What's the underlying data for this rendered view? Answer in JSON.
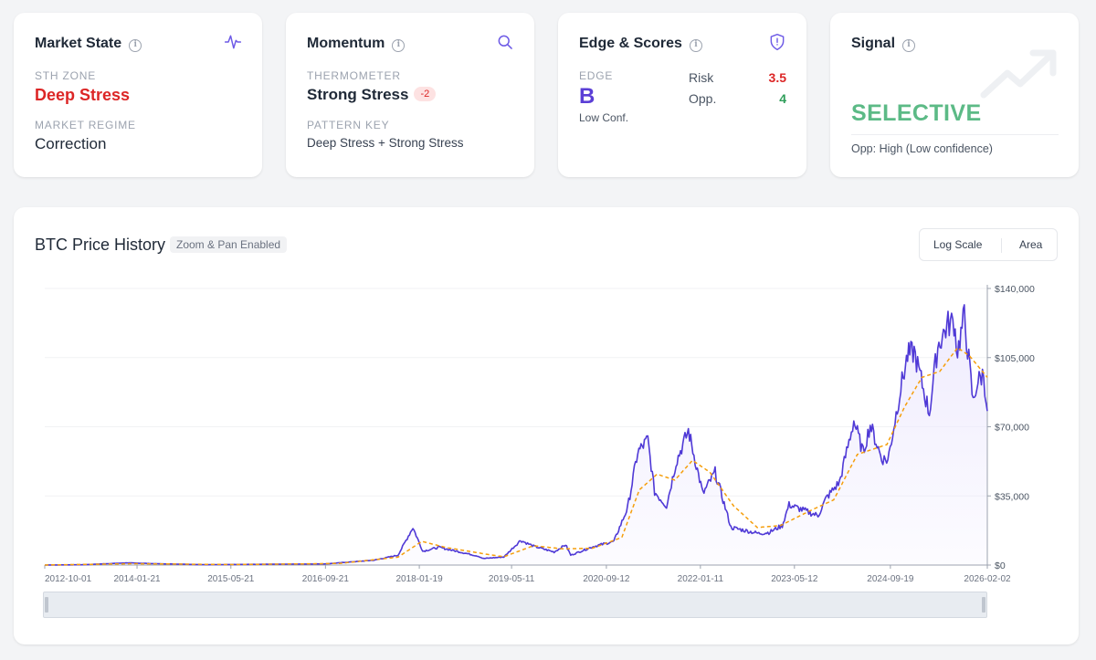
{
  "cards": {
    "market_state": {
      "title": "Market State",
      "header_icon": "activity-icon",
      "sth_label": "STH ZONE",
      "sth_value": "Deep Stress",
      "regime_label": "MARKET REGIME",
      "regime_value": "Correction"
    },
    "momentum": {
      "title": "Momentum",
      "header_icon": "search-icon",
      "thermo_label": "THERMOMETER",
      "thermo_value": "Strong Stress",
      "thermo_badge": "-2",
      "pattern_label": "PATTERN KEY",
      "pattern_value": "Deep Stress + Strong Stress"
    },
    "edge": {
      "title": "Edge & Scores",
      "header_icon": "shield-icon",
      "edge_label": "EDGE",
      "edge_value": "B",
      "edge_conf": "Low Conf.",
      "risk_label": "Risk",
      "risk_value": "3.5",
      "opp_label": "Opp.",
      "opp_value": "4"
    },
    "signal": {
      "title": "Signal",
      "header_icon": "trending-up-icon",
      "value": "SELECTIVE",
      "sub": "Opp: High (Low confidence)"
    }
  },
  "chart_panel": {
    "title": "BTC Price History",
    "pill": "Zoom & Pan Enabled",
    "btn_log": "Log Scale",
    "btn_area": "Area"
  },
  "colors": {
    "price_line": "#4f39d6",
    "ma_line": "#f59e0b",
    "area_fill": "#ede9fe",
    "danger": "#dc2626",
    "success": "#2f9e5a",
    "signal": "#5cba86"
  },
  "chart_data": {
    "type": "line",
    "title": "BTC Price History",
    "xlabel": "",
    "ylabel": "",
    "x_ticks": [
      "2012-10-01",
      "2014-01-21",
      "2015-05-21",
      "2016-09-21",
      "2018-01-19",
      "2019-05-11",
      "2020-09-12",
      "2022-01-11",
      "2023-05-12",
      "2024-09-19",
      "2026-02-02"
    ],
    "y_ticks": [
      "$0",
      "$35,000",
      "$70,000",
      "$105,000",
      "$140,000"
    ],
    "ylim": [
      0,
      140000
    ],
    "xlim": [
      "2012-10-01",
      "2026-02-02"
    ],
    "grid": true,
    "series": [
      {
        "color": "#4f39d6",
        "points": [
          [
            "2012-10-01",
            12
          ],
          [
            "2013-04-10",
            150
          ],
          [
            "2013-12-01",
            1100
          ],
          [
            "2014-06-01",
            600
          ],
          [
            "2015-01-15",
            200
          ],
          [
            "2015-12-01",
            400
          ],
          [
            "2016-09-21",
            600
          ],
          [
            "2017-06-01",
            2500
          ],
          [
            "2017-10-01",
            5000
          ],
          [
            "2017-12-17",
            19000
          ],
          [
            "2018-02-06",
            7000
          ],
          [
            "2018-05-01",
            9000
          ],
          [
            "2018-11-20",
            4500
          ],
          [
            "2018-12-15",
            3300
          ],
          [
            "2019-04-01",
            4100
          ],
          [
            "2019-06-26",
            12500
          ],
          [
            "2019-09-01",
            9600
          ],
          [
            "2019-12-17",
            6600
          ],
          [
            "2020-02-14",
            10300
          ],
          [
            "2020-03-12",
            5000
          ],
          [
            "2020-07-01",
            9200
          ],
          [
            "2020-10-21",
            12000
          ],
          [
            "2020-12-31",
            29000
          ],
          [
            "2021-02-21",
            57000
          ],
          [
            "2021-04-14",
            63500
          ],
          [
            "2021-05-19",
            37000
          ],
          [
            "2021-07-20",
            30000
          ],
          [
            "2021-09-07",
            52000
          ],
          [
            "2021-11-10",
            68000
          ],
          [
            "2022-01-24",
            36000
          ],
          [
            "2022-03-28",
            47000
          ],
          [
            "2022-06-18",
            19000
          ],
          [
            "2022-11-09",
            16000
          ],
          [
            "2022-12-31",
            16500
          ],
          [
            "2023-03-10",
            20000
          ],
          [
            "2023-04-14",
            30500
          ],
          [
            "2023-09-11",
            25000
          ],
          [
            "2023-10-24",
            34000
          ],
          [
            "2023-12-31",
            42000
          ],
          [
            "2024-03-14",
            73000
          ],
          [
            "2024-05-01",
            57000
          ],
          [
            "2024-06-07",
            71000
          ],
          [
            "2024-08-05",
            54000
          ],
          [
            "2024-09-06",
            53000
          ],
          [
            "2024-11-12",
            90000
          ],
          [
            "2024-12-17",
            106000
          ],
          [
            "2025-01-20",
            108000
          ],
          [
            "2025-04-08",
            77000
          ],
          [
            "2025-05-22",
            111000
          ],
          [
            "2025-07-14",
            122000
          ],
          [
            "2025-08-14",
            123000
          ],
          [
            "2025-09-01",
            108000
          ],
          [
            "2025-10-06",
            126000
          ],
          [
            "2025-11-21",
            82000
          ],
          [
            "2025-12-10",
            92000
          ],
          [
            "2026-01-14",
            97000
          ],
          [
            "2026-02-02",
            78000
          ]
        ]
      },
      {
        "color": "#f59e0b",
        "points": [
          [
            "2012-10-01",
            10
          ],
          [
            "2014-01-01",
            700
          ],
          [
            "2015-06-01",
            250
          ],
          [
            "2016-12-01",
            800
          ],
          [
            "2017-10-01",
            4000
          ],
          [
            "2018-02-01",
            12000
          ],
          [
            "2018-06-01",
            9000
          ],
          [
            "2018-12-31",
            5500
          ],
          [
            "2019-04-01",
            4200
          ],
          [
            "2019-09-01",
            9800
          ],
          [
            "2020-02-01",
            8200
          ],
          [
            "2020-07-01",
            8500
          ],
          [
            "2020-12-01",
            14000
          ],
          [
            "2021-03-01",
            38000
          ],
          [
            "2021-06-01",
            46000
          ],
          [
            "2021-09-01",
            43000
          ],
          [
            "2021-12-01",
            53000
          ],
          [
            "2022-03-01",
            47000
          ],
          [
            "2022-07-01",
            30000
          ],
          [
            "2022-11-01",
            19000
          ],
          [
            "2023-03-01",
            20000
          ],
          [
            "2023-08-01",
            27500
          ],
          [
            "2023-12-01",
            33000
          ],
          [
            "2024-04-01",
            56000
          ],
          [
            "2024-09-01",
            61000
          ],
          [
            "2024-12-01",
            80000
          ],
          [
            "2025-03-01",
            95000
          ],
          [
            "2025-06-01",
            98000
          ],
          [
            "2025-09-01",
            110000
          ],
          [
            "2025-11-01",
            106000
          ],
          [
            "2026-02-02",
            95000
          ]
        ]
      }
    ],
    "area": true,
    "legend": "none"
  }
}
